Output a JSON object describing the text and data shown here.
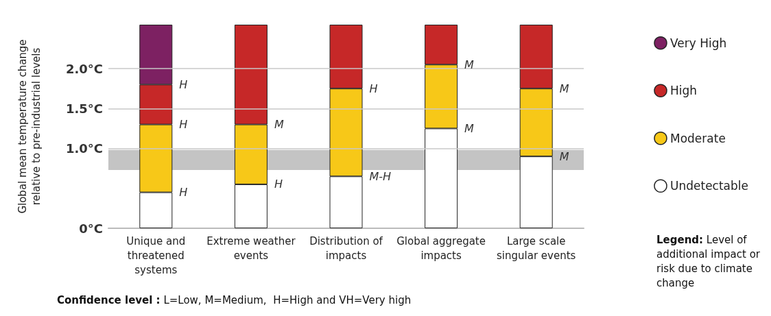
{
  "chart_data": {
    "type": "bar",
    "stacked": true,
    "ylabel": "Global mean temperature change relative to pre-industrial levels",
    "legend_title": "Legend: Level of additional impact or risk due to climate change",
    "categories": [
      "Unique and threatened systems",
      "Extreme weather events",
      "Distribution of impacts",
      "Global aggregate impacts",
      "Large scale singular events"
    ],
    "series": [
      {
        "name": "Undetectable",
        "color": "#ffffff",
        "values": [
          0.45,
          0.55,
          0.65,
          1.25,
          0.9
        ]
      },
      {
        "name": "Moderate",
        "color": "#f7c818",
        "values": [
          0.85,
          0.75,
          1.1,
          0.8,
          0.85
        ]
      },
      {
        "name": "High",
        "color": "#c62828",
        "values": [
          0.5,
          1.25,
          0.8,
          0.5,
          0.8
        ]
      },
      {
        "name": "Very High",
        "color": "#7d2162",
        "values": [
          0.75,
          0,
          0,
          0,
          0
        ]
      }
    ],
    "ylim": [
      0,
      2.55
    ],
    "yticks": [
      {
        "value": 0,
        "label": "0°C"
      },
      {
        "value": 1,
        "label": "1.0°C"
      },
      {
        "value": 1.5,
        "label": "1.5°C"
      },
      {
        "value": 2,
        "label": "2.0°C"
      }
    ],
    "grid": "y",
    "legend": "right",
    "bands": [
      {
        "axis": "y",
        "from": 0.73,
        "to": 0.98,
        "color": "#c4c4c4"
      }
    ],
    "annotations": [
      {
        "text": "H",
        "x": "Unique and threatened systems",
        "y": 1.8
      },
      {
        "text": "H",
        "x": "Unique and threatened systems",
        "y": 1.3
      },
      {
        "text": "H",
        "x": "Unique and threatened systems",
        "y": 0.45
      },
      {
        "text": "M",
        "x": "Extreme weather events",
        "y": 1.3
      },
      {
        "text": "H",
        "x": "Extreme weather events",
        "y": 0.55
      },
      {
        "text": "H",
        "x": "Distribution of impacts",
        "y": 1.75
      },
      {
        "text": "M-H",
        "x": "Distribution of impacts",
        "y": 0.65
      },
      {
        "text": "M",
        "x": "Global aggregate impacts",
        "y": 2.05
      },
      {
        "text": "M",
        "x": "Global aggregate impacts",
        "y": 1.25
      },
      {
        "text": "M",
        "x": "Large scale singular events",
        "y": 1.75
      },
      {
        "text": "M",
        "x": "Large scale singular events",
        "y": 0.9
      },
      "Confidence level : L=Low, M=Medium,  H=High and VH=Very high"
    ]
  }
}
